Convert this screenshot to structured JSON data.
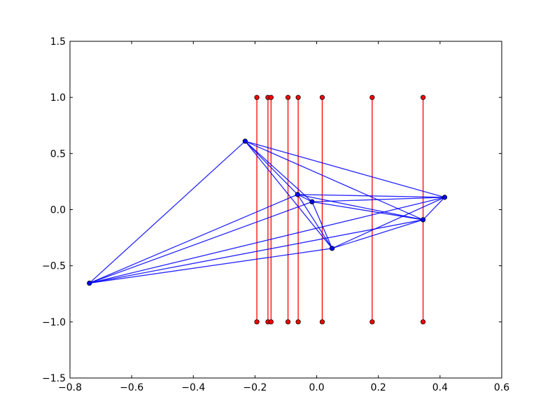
{
  "chart_data": {
    "type": "line",
    "title": "",
    "xlabel": "",
    "ylabel": "",
    "xlim": [
      -0.8,
      0.6
    ],
    "ylim": [
      -1.5,
      1.5
    ],
    "xticks": [
      -0.8,
      -0.6,
      -0.4,
      -0.2,
      0.0,
      0.2,
      0.4,
      0.6
    ],
    "yticks": [
      -1.5,
      -1.0,
      -0.5,
      0.0,
      0.5,
      1.0,
      1.5
    ],
    "xtick_labels": [
      "−0.8",
      "−0.6",
      "−0.4",
      "−0.2",
      "0.0",
      "0.2",
      "0.4",
      "0.6"
    ],
    "ytick_labels": [
      "−1.5",
      "−1.0",
      "−0.5",
      "0.0",
      "0.5",
      "1.0",
      "1.5"
    ],
    "grid": false,
    "legend": "none",
    "colors": {
      "segments": "#ff0000",
      "network": "#0000ff",
      "marker_edge": "#000000"
    },
    "series": [
      {
        "kind": "vertical-segments",
        "color": "#ff0000",
        "x": [
          -0.194,
          -0.158,
          -0.148,
          -0.093,
          -0.06,
          0.018,
          0.18,
          0.345
        ],
        "y_bottom": -1.0,
        "y_top": 1.0
      },
      {
        "kind": "network",
        "color": "#0000ff",
        "nodes": [
          {
            "x": -0.737,
            "y": -0.655
          },
          {
            "x": -0.232,
            "y": 0.61
          },
          {
            "x": -0.062,
            "y": 0.135
          },
          {
            "x": -0.015,
            "y": 0.07
          },
          {
            "x": 0.05,
            "y": -0.345
          },
          {
            "x": 0.345,
            "y": -0.09
          },
          {
            "x": 0.415,
            "y": 0.11
          }
        ],
        "edges": [
          [
            0,
            1
          ],
          [
            0,
            2
          ],
          [
            0,
            3
          ],
          [
            0,
            4
          ],
          [
            0,
            5
          ],
          [
            0,
            6
          ],
          [
            1,
            2
          ],
          [
            1,
            3
          ],
          [
            1,
            4
          ],
          [
            1,
            5
          ],
          [
            1,
            6
          ],
          [
            2,
            3
          ],
          [
            2,
            4
          ],
          [
            2,
            5
          ],
          [
            2,
            6
          ],
          [
            3,
            4
          ],
          [
            3,
            5
          ],
          [
            3,
            6
          ],
          [
            4,
            5
          ],
          [
            4,
            6
          ],
          [
            5,
            6
          ]
        ]
      }
    ]
  }
}
